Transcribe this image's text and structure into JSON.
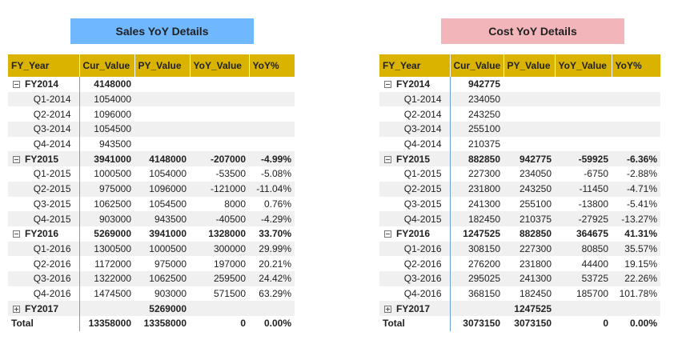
{
  "colors": {
    "header": "#d9b300",
    "sales_title_bg": "#6fb7ff",
    "cost_title_bg": "#f2b5ba",
    "band": "#f0f0f0",
    "divider": "#6aa0d8"
  },
  "columns": [
    "FY_Year",
    "Cur_Value",
    "PY_Value",
    "YoY_Value",
    "YoY%"
  ],
  "sales": {
    "title": "Sales YoY Details",
    "rows": [
      {
        "level": "year",
        "expand": "minus",
        "label": "FY2014",
        "cur": "4148000",
        "py": "",
        "yoy": "",
        "pct": ""
      },
      {
        "level": "quarter",
        "label": "Q1-2014",
        "cur": "1054000",
        "py": "",
        "yoy": "",
        "pct": ""
      },
      {
        "level": "quarter",
        "label": "Q2-2014",
        "cur": "1096000",
        "py": "",
        "yoy": "",
        "pct": ""
      },
      {
        "level": "quarter",
        "label": "Q3-2014",
        "cur": "1054500",
        "py": "",
        "yoy": "",
        "pct": ""
      },
      {
        "level": "quarter",
        "label": "Q4-2014",
        "cur": "943500",
        "py": "",
        "yoy": "",
        "pct": ""
      },
      {
        "level": "year",
        "expand": "minus",
        "label": "FY2015",
        "cur": "3941000",
        "py": "4148000",
        "yoy": "-207000",
        "pct": "-4.99%"
      },
      {
        "level": "quarter",
        "label": "Q1-2015",
        "cur": "1000500",
        "py": "1054000",
        "yoy": "-53500",
        "pct": "-5.08%"
      },
      {
        "level": "quarter",
        "label": "Q2-2015",
        "cur": "975000",
        "py": "1096000",
        "yoy": "-121000",
        "pct": "-11.04%"
      },
      {
        "level": "quarter",
        "label": "Q3-2015",
        "cur": "1062500",
        "py": "1054500",
        "yoy": "8000",
        "pct": "0.76%"
      },
      {
        "level": "quarter",
        "label": "Q4-2015",
        "cur": "903000",
        "py": "943500",
        "yoy": "-40500",
        "pct": "-4.29%"
      },
      {
        "level": "year",
        "expand": "minus",
        "label": "FY2016",
        "cur": "5269000",
        "py": "3941000",
        "yoy": "1328000",
        "pct": "33.70%"
      },
      {
        "level": "quarter",
        "label": "Q1-2016",
        "cur": "1300500",
        "py": "1000500",
        "yoy": "300000",
        "pct": "29.99%"
      },
      {
        "level": "quarter",
        "label": "Q2-2016",
        "cur": "1172000",
        "py": "975000",
        "yoy": "197000",
        "pct": "20.21%"
      },
      {
        "level": "quarter",
        "label": "Q3-2016",
        "cur": "1322000",
        "py": "1062500",
        "yoy": "259500",
        "pct": "24.42%"
      },
      {
        "level": "quarter",
        "label": "Q4-2016",
        "cur": "1474500",
        "py": "903000",
        "yoy": "571500",
        "pct": "63.29%"
      },
      {
        "level": "year",
        "expand": "plus",
        "label": "FY2017",
        "cur": "",
        "py": "5269000",
        "yoy": "",
        "pct": ""
      },
      {
        "level": "total",
        "label": "Total",
        "cur": "13358000",
        "py": "13358000",
        "yoy": "0",
        "pct": "0.00%"
      }
    ]
  },
  "cost": {
    "title": "Cost YoY Details",
    "rows": [
      {
        "level": "year",
        "expand": "minus",
        "label": "FY2014",
        "cur": "942775",
        "py": "",
        "yoy": "",
        "pct": ""
      },
      {
        "level": "quarter",
        "label": "Q1-2014",
        "cur": "234050",
        "py": "",
        "yoy": "",
        "pct": ""
      },
      {
        "level": "quarter",
        "label": "Q2-2014",
        "cur": "243250",
        "py": "",
        "yoy": "",
        "pct": ""
      },
      {
        "level": "quarter",
        "label": "Q3-2014",
        "cur": "255100",
        "py": "",
        "yoy": "",
        "pct": ""
      },
      {
        "level": "quarter",
        "label": "Q4-2014",
        "cur": "210375",
        "py": "",
        "yoy": "",
        "pct": ""
      },
      {
        "level": "year",
        "expand": "minus",
        "label": "FY2015",
        "cur": "882850",
        "py": "942775",
        "yoy": "-59925",
        "pct": "-6.36%"
      },
      {
        "level": "quarter",
        "label": "Q1-2015",
        "cur": "227300",
        "py": "234050",
        "yoy": "-6750",
        "pct": "-2.88%"
      },
      {
        "level": "quarter",
        "label": "Q2-2015",
        "cur": "231800",
        "py": "243250",
        "yoy": "-11450",
        "pct": "-4.71%"
      },
      {
        "level": "quarter",
        "label": "Q3-2015",
        "cur": "241300",
        "py": "255100",
        "yoy": "-13800",
        "pct": "-5.41%"
      },
      {
        "level": "quarter",
        "label": "Q4-2015",
        "cur": "182450",
        "py": "210375",
        "yoy": "-27925",
        "pct": "-13.27%"
      },
      {
        "level": "year",
        "expand": "minus",
        "label": "FY2016",
        "cur": "1247525",
        "py": "882850",
        "yoy": "364675",
        "pct": "41.31%"
      },
      {
        "level": "quarter",
        "label": "Q1-2016",
        "cur": "308150",
        "py": "227300",
        "yoy": "80850",
        "pct": "35.57%"
      },
      {
        "level": "quarter",
        "label": "Q2-2016",
        "cur": "276200",
        "py": "231800",
        "yoy": "44400",
        "pct": "19.15%"
      },
      {
        "level": "quarter",
        "label": "Q3-2016",
        "cur": "295025",
        "py": "241300",
        "yoy": "53725",
        "pct": "22.26%"
      },
      {
        "level": "quarter",
        "label": "Q4-2016",
        "cur": "368150",
        "py": "182450",
        "yoy": "185700",
        "pct": "101.78%"
      },
      {
        "level": "year",
        "expand": "plus",
        "label": "FY2017",
        "cur": "",
        "py": "1247525",
        "yoy": "",
        "pct": ""
      },
      {
        "level": "total",
        "label": "Total",
        "cur": "3073150",
        "py": "3073150",
        "yoy": "0",
        "pct": "0.00%"
      }
    ]
  }
}
